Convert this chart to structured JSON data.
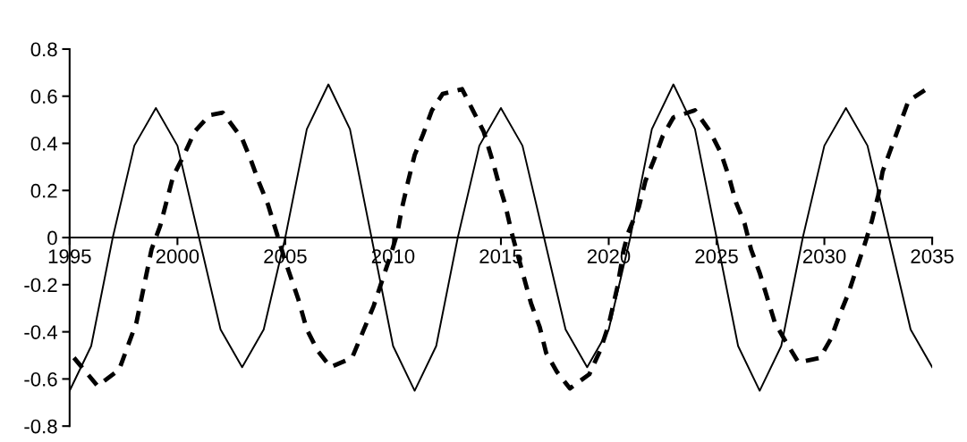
{
  "chart_data": {
    "type": "line",
    "xlim": [
      1995,
      2035
    ],
    "ylim": [
      -0.8,
      0.8
    ],
    "xticks": [
      1995,
      2000,
      2005,
      2010,
      2015,
      2020,
      2025,
      2030,
      2035
    ],
    "yticks": [
      0.8,
      0.6,
      0.4,
      0.2,
      0,
      -0.2,
      -0.4,
      -0.6,
      -0.8
    ],
    "grid": false,
    "legend": false,
    "series": [
      {
        "color": "#000000",
        "line_style": "solid",
        "x": [
          1995,
          1996,
          1997,
          1998,
          1999,
          2000,
          2001,
          2002,
          2003,
          2004,
          2005,
          2006,
          2007,
          2008,
          2009,
          2010,
          2011,
          2012,
          2013,
          2014,
          2015,
          2016,
          2017,
          2018,
          2019,
          2020,
          2021,
          2022,
          2023,
          2024,
          2025,
          2026,
          2027,
          2028,
          2029,
          2030,
          2031,
          2032,
          2033,
          2034,
          2035
        ],
        "values": [
          -0.65,
          -0.46,
          0.0,
          0.39,
          0.55,
          0.39,
          0.0,
          -0.39,
          -0.55,
          -0.39,
          0.0,
          0.46,
          0.65,
          0.46,
          0.0,
          -0.46,
          -0.65,
          -0.46,
          0.0,
          0.39,
          0.55,
          0.39,
          0.0,
          -0.39,
          -0.55,
          -0.39,
          0.0,
          0.46,
          0.65,
          0.46,
          0.0,
          -0.46,
          -0.65,
          -0.46,
          0.0,
          0.39,
          0.55,
          0.39,
          0.0,
          -0.39,
          -0.55
        ]
      },
      {
        "color": "#000000",
        "line_style": "dashed",
        "x": [
          1995.2,
          1996.3,
          1997.3,
          1998.1,
          1998.8,
          1999.2,
          1999.8,
          2000.3,
          2000.8,
          2001.5,
          2002.1,
          2003.0,
          2003.4,
          2003.8,
          2004.2,
          2004.6,
          2005.0,
          2005.6,
          2006.0,
          2006.5,
          2007.1,
          2008.1,
          2008.6,
          2009.1,
          2009.9,
          2010.2,
          2010.4,
          2010.7,
          2011.0,
          2011.4,
          2011.8,
          2012.3,
          2013.2,
          2013.7,
          2014.2,
          2014.6,
          2014.9,
          2015.2,
          2015.5,
          2015.8,
          2016.1,
          2016.4,
          2016.8,
          2017.1,
          2017.6,
          2018.2,
          2019.1,
          2019.6,
          2020.0,
          2020.4,
          2020.7,
          2020.9,
          2021.4,
          2021.7,
          2022.1,
          2022.5,
          2023.0,
          2024.0,
          2024.7,
          2025.2,
          2025.6,
          2025.9,
          2026.3,
          2026.6,
          2027.0,
          2027.3,
          2027.7,
          2028.2,
          2028.8,
          2029.8,
          2030.3,
          2030.7,
          2031.1,
          2031.5,
          2031.9,
          2032.2,
          2032.5,
          2032.7,
          2033.1,
          2033.5,
          2033.9,
          2034.9
        ],
        "values": [
          -0.51,
          -0.63,
          -0.56,
          -0.36,
          -0.05,
          0.05,
          0.26,
          0.35,
          0.45,
          0.52,
          0.53,
          0.42,
          0.33,
          0.23,
          0.14,
          0.02,
          -0.1,
          -0.26,
          -0.39,
          -0.48,
          -0.55,
          -0.51,
          -0.4,
          -0.29,
          -0.07,
          0.02,
          0.12,
          0.24,
          0.35,
          0.44,
          0.54,
          0.61,
          0.63,
          0.54,
          0.45,
          0.33,
          0.23,
          0.14,
          0.02,
          -0.08,
          -0.18,
          -0.28,
          -0.38,
          -0.49,
          -0.57,
          -0.64,
          -0.58,
          -0.48,
          -0.37,
          -0.21,
          -0.05,
          0.02,
          0.13,
          0.24,
          0.33,
          0.43,
          0.51,
          0.54,
          0.45,
          0.36,
          0.25,
          0.15,
          0.06,
          -0.05,
          -0.15,
          -0.24,
          -0.36,
          -0.44,
          -0.53,
          -0.51,
          -0.43,
          -0.33,
          -0.24,
          -0.13,
          -0.02,
          0.07,
          0.18,
          0.28,
          0.38,
          0.48,
          0.58,
          0.64
        ]
      }
    ]
  }
}
